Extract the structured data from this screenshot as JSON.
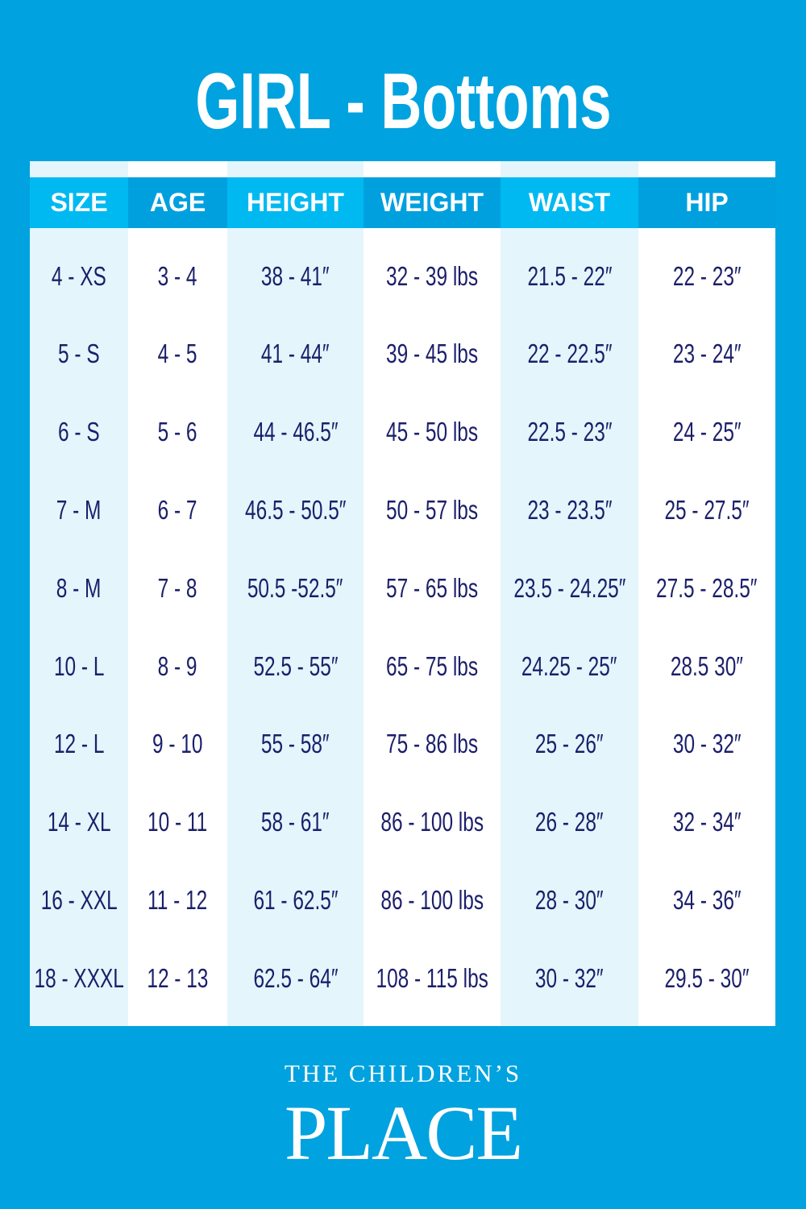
{
  "title": "GIRL - Bottoms",
  "colors": {
    "background": "#00a2df",
    "header_light": "#00b9f1",
    "header_dark": "#00a0df",
    "alt_column": "#e4f5fc",
    "text": "#1b1f6a"
  },
  "table": {
    "headers": [
      "SIZE",
      "AGE",
      "HEIGHT",
      "WEIGHT",
      "WAIST",
      "HIP"
    ],
    "rows": [
      [
        "4 - XS",
        "3 - 4",
        "38 - 41″",
        "32 - 39 lbs",
        "21.5 - 22″",
        "22 - 23″"
      ],
      [
        "5 - S",
        "4 - 5",
        "41 - 44″",
        "39 - 45 lbs",
        "22 - 22.5″",
        "23 - 24″"
      ],
      [
        "6 - S",
        "5 - 6",
        "44 - 46.5″",
        "45 - 50 lbs",
        "22.5 - 23″",
        "24 - 25″"
      ],
      [
        "7 - M",
        "6 - 7",
        "46.5 - 50.5″",
        "50 - 57 lbs",
        "23 - 23.5″",
        "25 - 27.5″"
      ],
      [
        "8 - M",
        "7 - 8",
        "50.5 -52.5″",
        "57 - 65 lbs",
        "23.5 - 24.25″",
        "27.5 - 28.5″"
      ],
      [
        "10 - L",
        "8 - 9",
        "52.5 - 55″",
        "65 - 75 lbs",
        "24.25 - 25″",
        "28.5 30″"
      ],
      [
        "12 - L",
        "9 - 10",
        "55 - 58″",
        "75 - 86 lbs",
        "25 - 26″",
        "30 - 32″"
      ],
      [
        "14 - XL",
        "10 - 11",
        "58 - 61″",
        "86 - 100 lbs",
        "26 - 28″",
        "32 - 34″"
      ],
      [
        "16 - XXL",
        "11 - 12",
        "61 - 62.5″",
        "86 - 100 lbs",
        "28 - 30″",
        "34 - 36″"
      ],
      [
        "18 - XXXL",
        "12 - 13",
        "62.5 - 64″",
        "108 - 115 lbs",
        "30 - 32″",
        "29.5 - 30″"
      ]
    ]
  },
  "logo": {
    "line1": "THE CHILDREN’S",
    "line2": "PLACE"
  }
}
